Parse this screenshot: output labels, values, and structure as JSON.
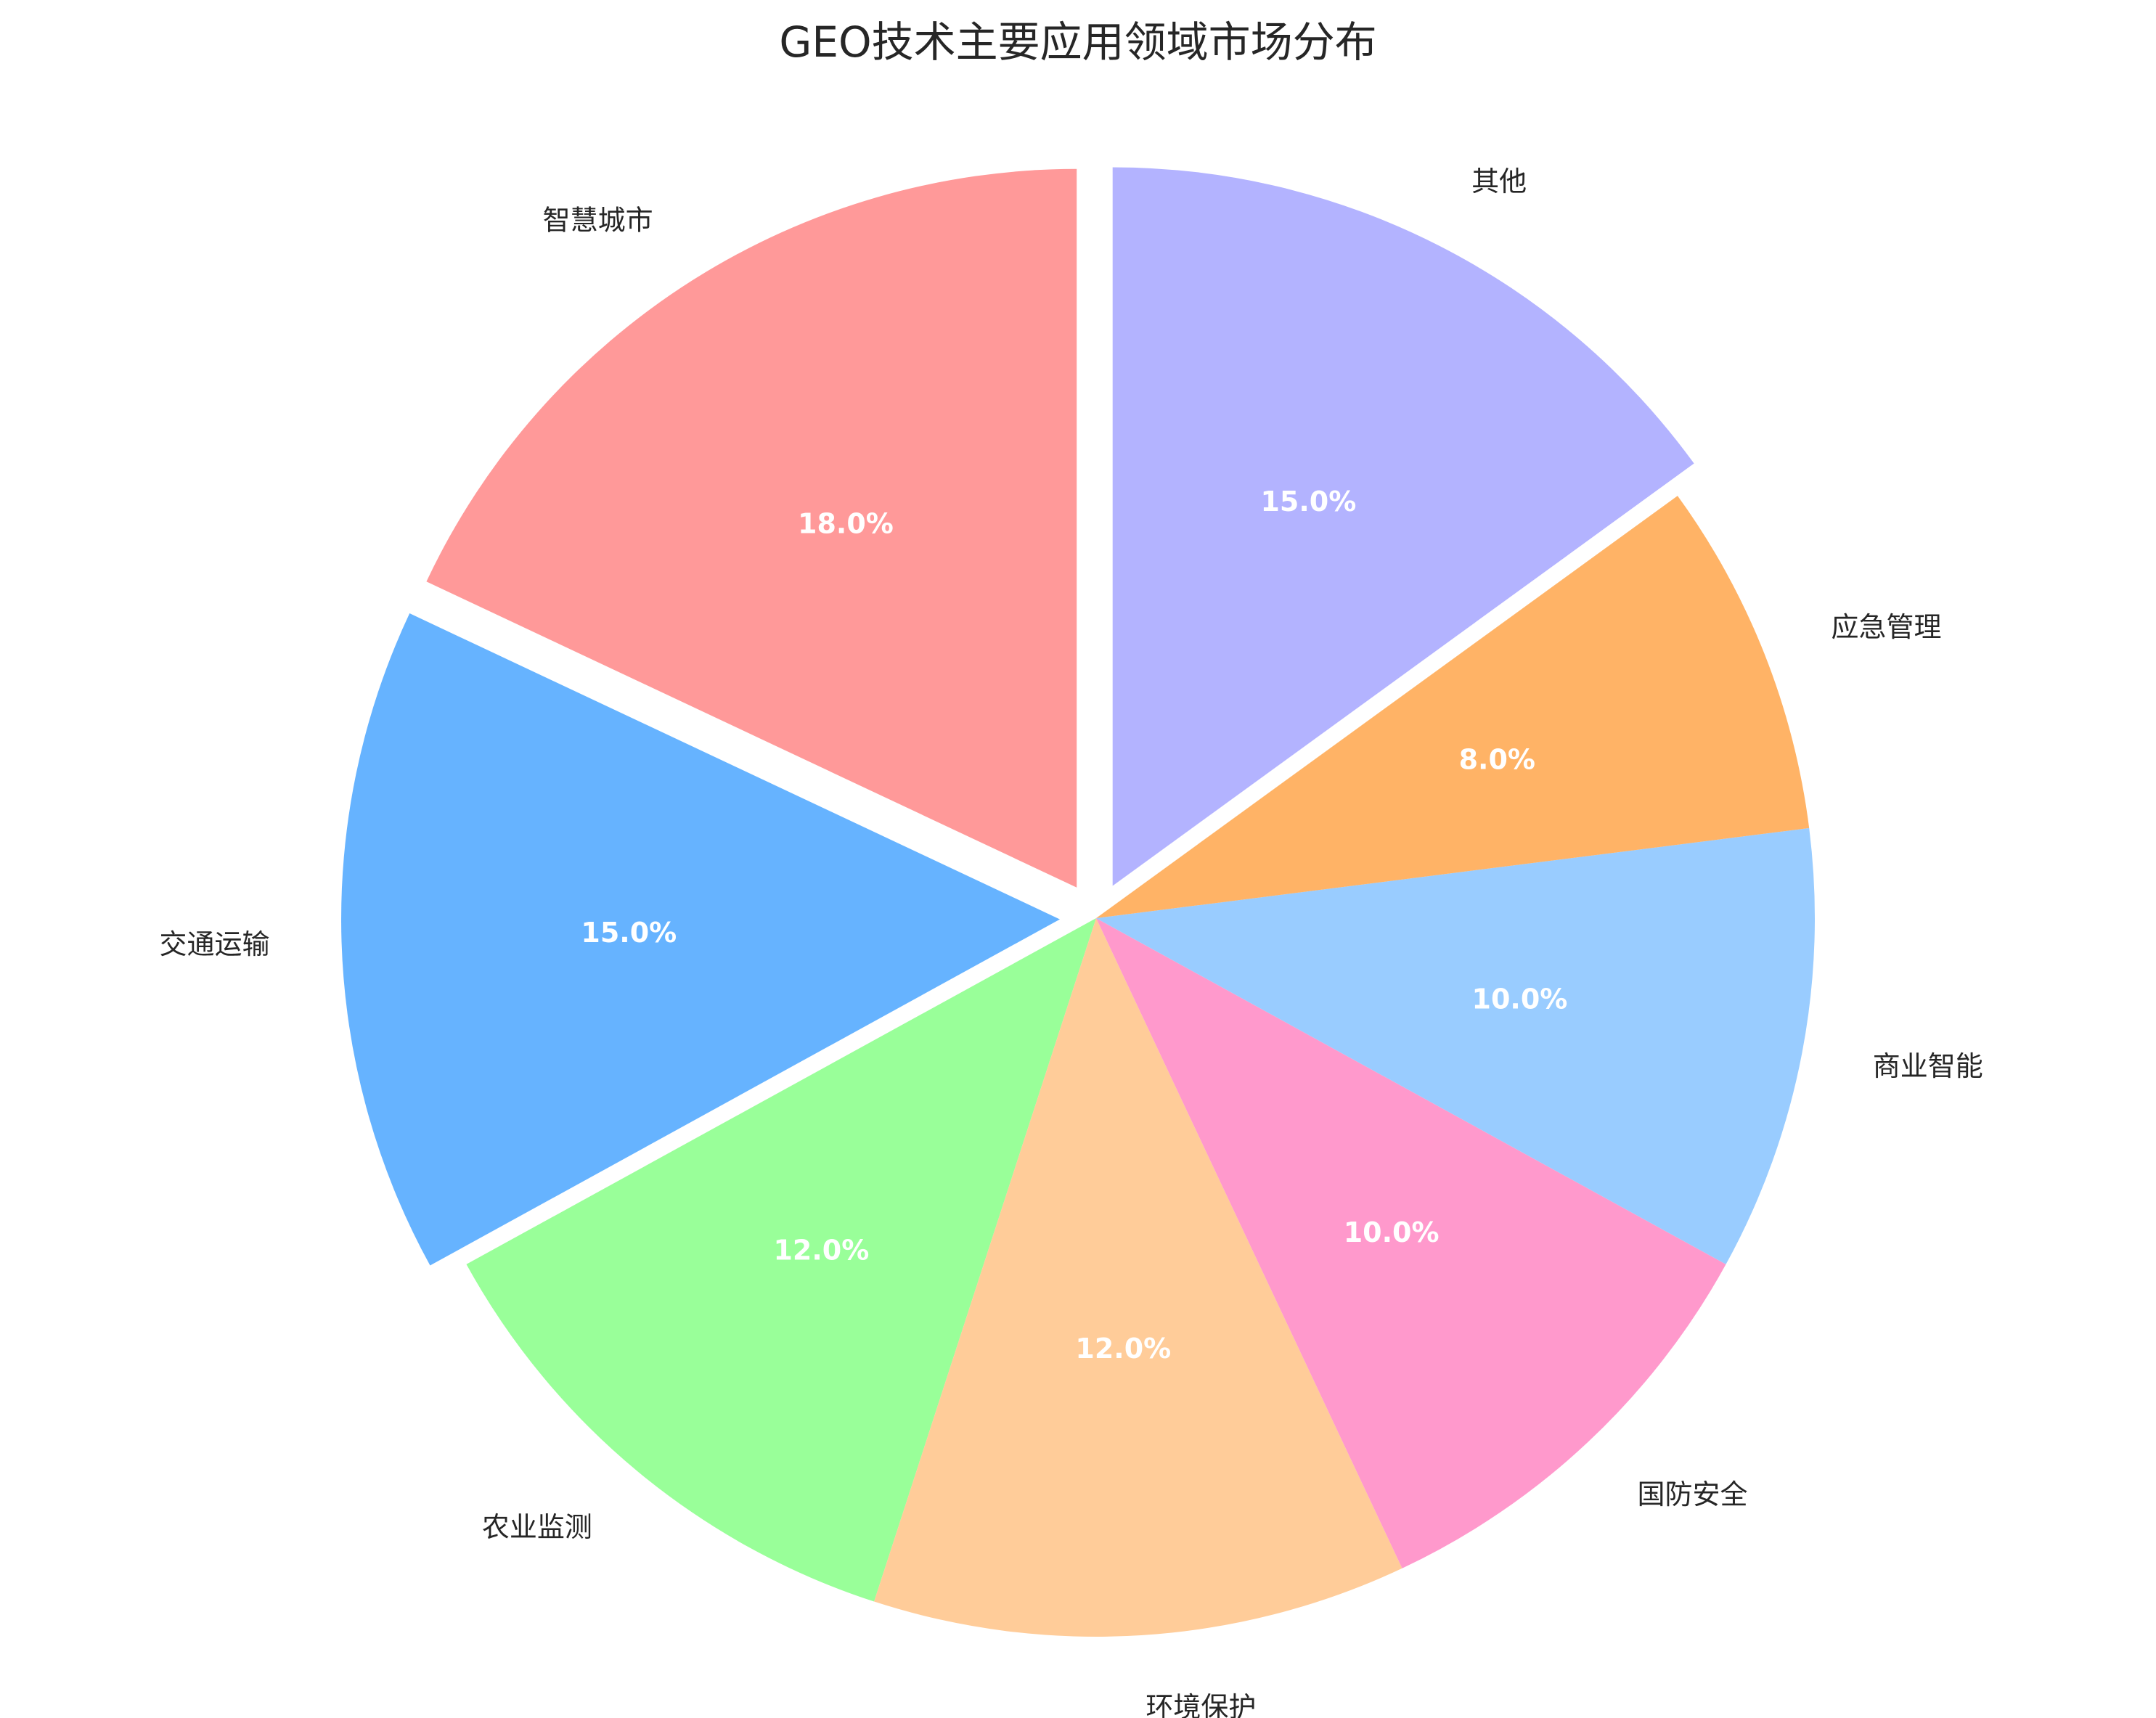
{
  "chart_data": {
    "type": "pie",
    "title": "GEO技术主要应用领域市场分布",
    "categories": [
      "智慧城市",
      "交通运输",
      "农业监测",
      "环境保护",
      "国防安全",
      "商业智能",
      "应急管理",
      "其他"
    ],
    "values": [
      18.0,
      15.0,
      12.0,
      12.0,
      10.0,
      10.0,
      8.0,
      15.0
    ],
    "value_labels": [
      "18.0%",
      "15.0%",
      "12.0%",
      "12.0%",
      "10.0%",
      "10.0%",
      "8.0%",
      "15.0%"
    ],
    "colors": [
      "#ff9999",
      "#66b3ff",
      "#99ff99",
      "#ffcc99",
      "#ff99cc",
      "#99ccff",
      "#ffb366",
      "#b3b3ff"
    ],
    "exploded": [
      true,
      true,
      false,
      false,
      false,
      false,
      false,
      true
    ],
    "start_angle_deg": 90,
    "direction": "counterclockwise",
    "legend": "none"
  }
}
